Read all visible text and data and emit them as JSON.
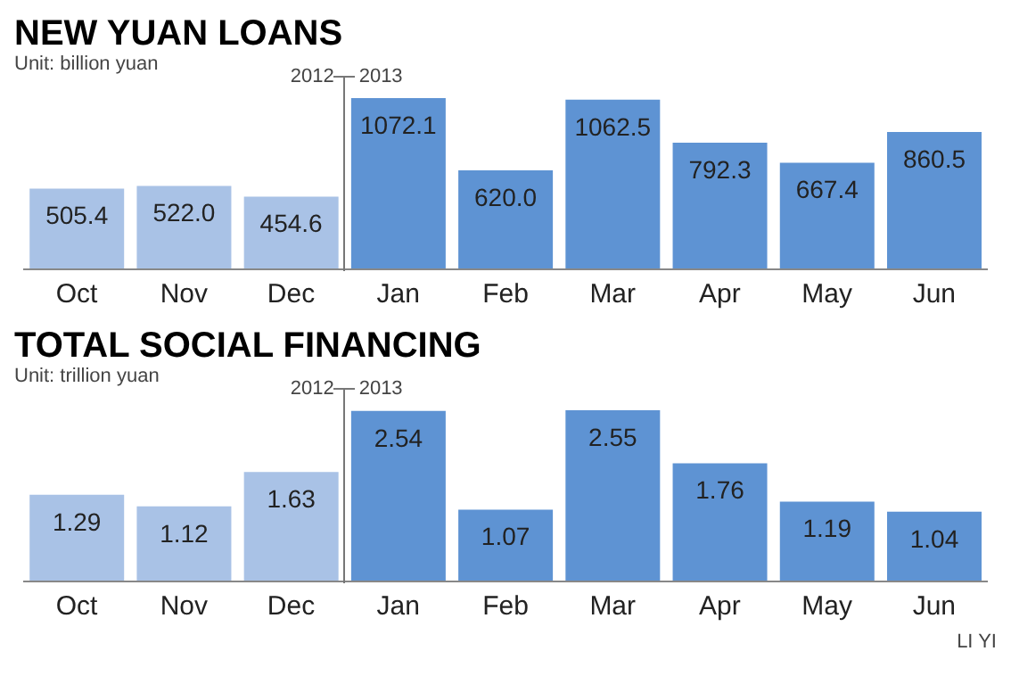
{
  "chart_data": [
    {
      "type": "bar",
      "title": "NEW YUAN LOANS",
      "subtitle": "Unit: billion yuan",
      "categories": [
        "Oct",
        "Nov",
        "Dec",
        "Jan",
        "Feb",
        "Mar",
        "Apr",
        "May",
        "Jun"
      ],
      "values": [
        505.4,
        522.0,
        454.6,
        1072.1,
        620.0,
        1062.5,
        792.3,
        667.4,
        860.5
      ],
      "colors": [
        "#a9c2e6",
        "#a9c2e6",
        "#a9c2e6",
        "#5e93d3",
        "#5e93d3",
        "#5e93d3",
        "#5e93d3",
        "#5e93d3",
        "#5e93d3"
      ],
      "value_labels": [
        "505.4",
        "522.0",
        "454.6",
        "1072.1",
        "620.0",
        "1062.5",
        "792.3",
        "667.4",
        "860.5"
      ],
      "annotations": [
        "2012",
        "2013"
      ]
    },
    {
      "type": "bar",
      "title": "TOTAL SOCIAL FINANCING",
      "subtitle": "Unit: trillion yuan",
      "categories": [
        "Oct",
        "Nov",
        "Dec",
        "Jan",
        "Feb",
        "Mar",
        "Apr",
        "May",
        "Jun"
      ],
      "values": [
        1.29,
        1.12,
        1.63,
        2.54,
        1.07,
        2.55,
        1.76,
        1.19,
        1.04
      ],
      "colors": [
        "#a9c2e6",
        "#a9c2e6",
        "#a9c2e6",
        "#5e93d3",
        "#5e93d3",
        "#5e93d3",
        "#5e93d3",
        "#5e93d3",
        "#5e93d3"
      ],
      "data_labels": true,
      "annotations": [
        "2012",
        "2013",
        "LI YI"
      ]
    }
  ]
}
